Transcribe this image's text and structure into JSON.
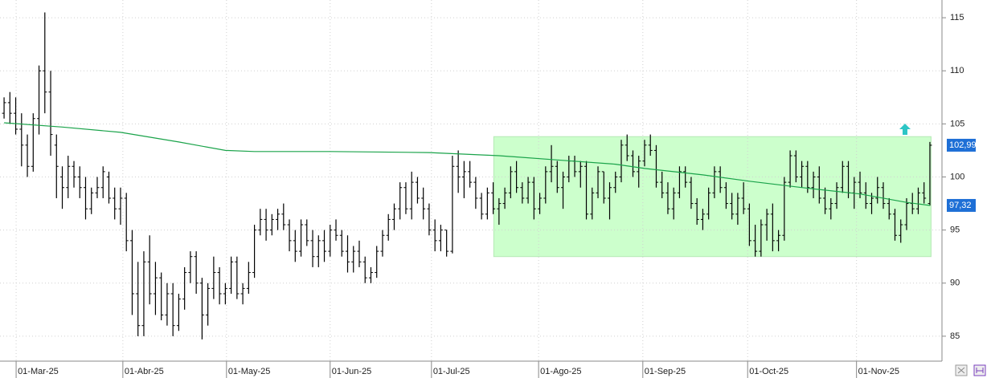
{
  "chart_data": {
    "type": "ohlc",
    "color": "#000000",
    "grid": true,
    "xlim": [
      -0.7,
      160.8
    ],
    "ylim": [
      82.65,
      116.67
    ],
    "xticks": [
      {
        "value": 2.07,
        "label": "01-Mar-25"
      },
      {
        "value": 20.4,
        "label": "01-Abr-25"
      },
      {
        "value": 38.2,
        "label": "01-May-25"
      },
      {
        "value": 56.0,
        "label": "01-Jun-25"
      },
      {
        "value": 73.4,
        "label": "01-Jul-25"
      },
      {
        "value": 91.8,
        "label": "01-Ago-25"
      },
      {
        "value": 109.7,
        "label": "01-Sep-25"
      },
      {
        "value": 127.7,
        "label": "01-Oct-25"
      },
      {
        "value": 146.4,
        "label": "01-Nov-25"
      }
    ],
    "yticks": [
      85,
      90,
      95,
      100,
      105,
      110,
      115
    ],
    "ohlc": [
      [
        106,
        107.5,
        105.5,
        107
      ],
      [
        107,
        108,
        105,
        106
      ],
      [
        106,
        107.5,
        104,
        104.5
      ],
      [
        104.5,
        106,
        101,
        103
      ],
      [
        103,
        104,
        100,
        101
      ],
      [
        101,
        106,
        100.5,
        105.5
      ],
      [
        105.5,
        110.5,
        104,
        110
      ],
      [
        110,
        115.5,
        106,
        108
      ],
      [
        108,
        110,
        102,
        104
      ],
      [
        103,
        104,
        98,
        101
      ],
      [
        100,
        101,
        97,
        99
      ],
      [
        99,
        102,
        98,
        101
      ],
      [
        101,
        101.5,
        99,
        100
      ],
      [
        100,
        101,
        98,
        99
      ],
      [
        99,
        100,
        96,
        97
      ],
      [
        97,
        99,
        96.5,
        98.5
      ],
      [
        98.5,
        100,
        98,
        99
      ],
      [
        99,
        101,
        98,
        100.5
      ],
      [
        100,
        100.5,
        97.5,
        98
      ],
      [
        98,
        99,
        96,
        97
      ],
      [
        97,
        99,
        95.5,
        98
      ],
      [
        98,
        98.5,
        93,
        94
      ],
      [
        94,
        95,
        87,
        89
      ],
      [
        89,
        92,
        85,
        86
      ],
      [
        86,
        93,
        85,
        92
      ],
      [
        92,
        94.5,
        88,
        89
      ],
      [
        89,
        92,
        87,
        90.5
      ],
      [
        90.5,
        91,
        86.5,
        87
      ],
      [
        87,
        90,
        86,
        89
      ],
      [
        89,
        90,
        85,
        86
      ],
      [
        86,
        89,
        85.5,
        88.5
      ],
      [
        88.5,
        91.5,
        87.5,
        91
      ],
      [
        91,
        93,
        90,
        92.5
      ],
      [
        92.5,
        93,
        89,
        90
      ],
      [
        90,
        90.5,
        84.7,
        87
      ],
      [
        87,
        90,
        86,
        89.5
      ],
      [
        89.5,
        92.5,
        88.5,
        91
      ],
      [
        91,
        91.5,
        88,
        89
      ],
      [
        89,
        90,
        88,
        89.5
      ],
      [
        89.5,
        92.5,
        89,
        92
      ],
      [
        92,
        92.5,
        88.5,
        89
      ],
      [
        89,
        90,
        88,
        89.5
      ],
      [
        89.5,
        92,
        89,
        91
      ],
      [
        91,
        95.5,
        90.5,
        95
      ],
      [
        95,
        97,
        94.5,
        96
      ],
      [
        96,
        97,
        94,
        95
      ],
      [
        95,
        96.5,
        94.5,
        96
      ],
      [
        96,
        97,
        95,
        96.5
      ],
      [
        96.5,
        97.5,
        95,
        95.5
      ],
      [
        95.5,
        96,
        93,
        94
      ],
      [
        94,
        95,
        92,
        93
      ],
      [
        93,
        96,
        92.5,
        95.5
      ],
      [
        95.5,
        96,
        93.5,
        94
      ],
      [
        94,
        95,
        91.5,
        92.5
      ],
      [
        92.5,
        94.5,
        91.5,
        94
      ],
      [
        94,
        95,
        92,
        93
      ],
      [
        93,
        95.5,
        92.5,
        95
      ],
      [
        95,
        96,
        94,
        94.5
      ],
      [
        94.5,
        95,
        92.5,
        93
      ],
      [
        93,
        94.5,
        91,
        92
      ],
      [
        92,
        93.5,
        91,
        93
      ],
      [
        93,
        94,
        91.5,
        92
      ],
      [
        92,
        92.5,
        90,
        90.5
      ],
      [
        90.5,
        91.5,
        90,
        91
      ],
      [
        91,
        93.5,
        90.5,
        93
      ],
      [
        93,
        95,
        92.5,
        94.5
      ],
      [
        94.5,
        96.5,
        94,
        96
      ],
      [
        96,
        97.5,
        95,
        97
      ],
      [
        97,
        99.5,
        96,
        99
      ],
      [
        99,
        99.5,
        96.5,
        97
      ],
      [
        97,
        100.5,
        96,
        99.5
      ],
      [
        99.5,
        100,
        97.5,
        98
      ],
      [
        98,
        99,
        96,
        97
      ],
      [
        97,
        97.5,
        94.5,
        95
      ],
      [
        95,
        96,
        93,
        94
      ],
      [
        94,
        95.5,
        93,
        95
      ],
      [
        95,
        95,
        92.5,
        93
      ],
      [
        93,
        102,
        92.8,
        101
      ],
      [
        101,
        102.5,
        98.5,
        100
      ],
      [
        100,
        101.5,
        98,
        100.5
      ],
      [
        100.5,
        101.5,
        99,
        99.5
      ],
      [
        99.5,
        100,
        97,
        98
      ],
      [
        98,
        98.5,
        96,
        96.5
      ],
      [
        96.5,
        99,
        96,
        98.5
      ],
      [
        98.5,
        99.5,
        96.5,
        97
      ],
      [
        97,
        98,
        95.5,
        97.5
      ],
      [
        97.5,
        99,
        97,
        98.5
      ],
      [
        98.5,
        101,
        98,
        100.5
      ],
      [
        100.5,
        101.5,
        98.5,
        99
      ],
      [
        99,
        99.5,
        97.5,
        98
      ],
      [
        98,
        100,
        97.5,
        99.5
      ],
      [
        99.5,
        100,
        96,
        97
      ],
      [
        97,
        98.5,
        96.5,
        98
      ],
      [
        98,
        101,
        97.5,
        100.5
      ],
      [
        100.5,
        103,
        99.5,
        101
      ],
      [
        101,
        101.5,
        98.5,
        99
      ],
      [
        99,
        100.5,
        97,
        100
      ],
      [
        100,
        102,
        99.5,
        101.5
      ],
      [
        101.5,
        102,
        100,
        100.5
      ],
      [
        100.5,
        101.5,
        99,
        101
      ],
      [
        101,
        101.5,
        96,
        96.5
      ],
      [
        96.5,
        99,
        96,
        98.5
      ],
      [
        98.5,
        101,
        98,
        100.5
      ],
      [
        100.5,
        100.5,
        97.5,
        98
      ],
      [
        98,
        99.5,
        96,
        99
      ],
      [
        99,
        100.5,
        98.5,
        100
      ],
      [
        100,
        103.5,
        99.5,
        103
      ],
      [
        103,
        104,
        101.5,
        102
      ],
      [
        102,
        102.5,
        100,
        100.5
      ],
      [
        100.5,
        102,
        99,
        101.5
      ],
      [
        101.5,
        103.5,
        101,
        103
      ],
      [
        103,
        104,
        102,
        102.5
      ],
      [
        102.5,
        103,
        99,
        99.5
      ],
      [
        99.5,
        100.5,
        98,
        98.5
      ],
      [
        98.5,
        99.5,
        96.5,
        97
      ],
      [
        97,
        99,
        96,
        98.5
      ],
      [
        98.5,
        101,
        98,
        100.5
      ],
      [
        100.5,
        101,
        99,
        99.5
      ],
      [
        99.5,
        100,
        97,
        97.5
      ],
      [
        97.5,
        98,
        95.5,
        96
      ],
      [
        96,
        97,
        95,
        96.5
      ],
      [
        96.5,
        99,
        96,
        98.5
      ],
      [
        98.5,
        101,
        98,
        100.5
      ],
      [
        100.5,
        101,
        98.5,
        99
      ],
      [
        99,
        99.5,
        97,
        97.5
      ],
      [
        97.5,
        98.5,
        96,
        96.5
      ],
      [
        96.5,
        98.5,
        95.5,
        98
      ],
      [
        98,
        99.5,
        96.5,
        97
      ],
      [
        97,
        97.5,
        93.5,
        94
      ],
      [
        94,
        95.5,
        92.5,
        93
      ],
      [
        93,
        96,
        92.5,
        95.5
      ],
      [
        95.5,
        97,
        94,
        96.5
      ],
      [
        96.5,
        97.5,
        93,
        94
      ],
      [
        94,
        95,
        93,
        94.5
      ],
      [
        94.5,
        100,
        94,
        99.5
      ],
      [
        99.5,
        102.5,
        99,
        102
      ],
      [
        102,
        102.5,
        99.5,
        100
      ],
      [
        100,
        101.5,
        99,
        101
      ],
      [
        101,
        101.5,
        98.5,
        99
      ],
      [
        99,
        100.5,
        98,
        100
      ],
      [
        100,
        101,
        97.5,
        98
      ],
      [
        98,
        99,
        96.5,
        97
      ],
      [
        97,
        98,
        96,
        97.5
      ],
      [
        97.5,
        99.5,
        97,
        99
      ],
      [
        99,
        101.5,
        98.5,
        101
      ],
      [
        101,
        101.5,
        98,
        98.5
      ],
      [
        98.5,
        100,
        97,
        99.5
      ],
      [
        99.5,
        100.5,
        98,
        98.5
      ],
      [
        98.5,
        99.5,
        97,
        97.5
      ],
      [
        97.5,
        98.5,
        96.5,
        98
      ],
      [
        98,
        100,
        97.5,
        99
      ],
      [
        99,
        99.5,
        97,
        97.5
      ],
      [
        97.5,
        98,
        96,
        96.5
      ],
      [
        96.5,
        97,
        94,
        94.5
      ],
      [
        94.5,
        96,
        93.8,
        95.5
      ],
      [
        95.5,
        98,
        95,
        97.5
      ],
      [
        97.5,
        98.5,
        96.5,
        97
      ],
      [
        97,
        99,
        96.5,
        98.5
      ],
      [
        98.5,
        99.5,
        97.5,
        98
      ],
      [
        97.5,
        103.3,
        97.3,
        102.99
      ]
    ],
    "moving_average": {
      "color": "#1aa34a",
      "x": [
        0,
        10,
        20,
        30,
        38,
        43,
        56,
        73,
        85,
        95,
        105,
        110,
        120,
        128,
        137,
        147,
        155,
        159
      ],
      "values": [
        105.1,
        104.7,
        104.2,
        103.3,
        102.5,
        102.4,
        102.4,
        102.3,
        102.0,
        101.6,
        101.2,
        100.8,
        100.2,
        99.6,
        99.0,
        98.4,
        97.6,
        97.32
      ]
    },
    "highlight": {
      "color": "#ccffcc",
      "xlim": [
        84.1,
        159.2
      ],
      "ylim": [
        92.5,
        103.8
      ]
    },
    "price_labels_color": "#1e6fd6",
    "price_labels": [
      {
        "value": 102.99,
        "label": "102,99"
      },
      {
        "value": 97.32,
        "label": "97,32"
      }
    ]
  }
}
